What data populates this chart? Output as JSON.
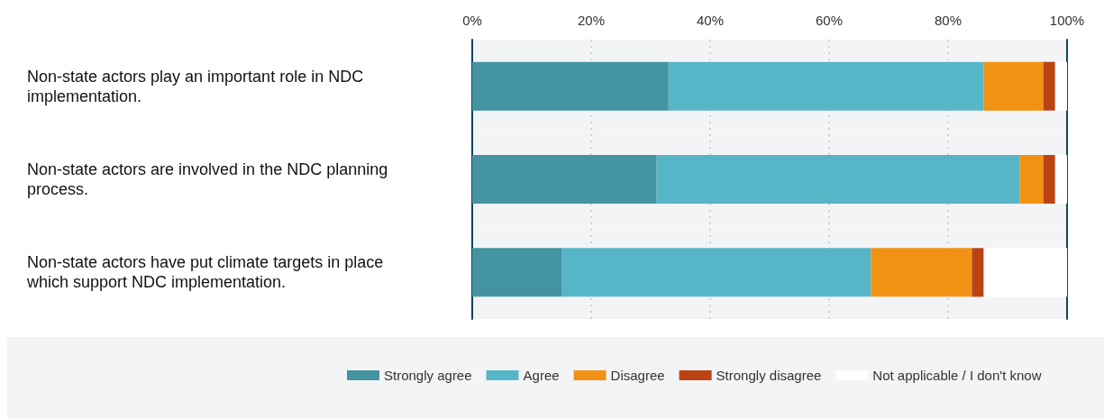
{
  "chart_data": {
    "type": "bar",
    "orientation": "horizontal",
    "stacked": true,
    "categories": [
      "Non-state actors play an important role in NDC implementation.",
      "Non-state actors are involved in the NDC planning process.",
      "Non-state actors have put climate targets in place which support NDC implementation."
    ],
    "series": [
      {
        "name": "Strongly agree",
        "color": "#4394a0",
        "values": [
          33,
          31,
          15
        ]
      },
      {
        "name": "Agree",
        "color": "#57b5c8",
        "values": [
          53,
          61,
          52
        ]
      },
      {
        "name": "Disagree",
        "color": "#f29214",
        "values": [
          10,
          4,
          17
        ]
      },
      {
        "name": "Strongly disagree",
        "color": "#bb4215",
        "values": [
          2,
          2,
          2
        ]
      },
      {
        "name": "Not applicable / I don't know",
        "color": "#ffffff",
        "values": [
          2,
          2,
          14
        ]
      }
    ],
    "xlim": [
      0,
      100
    ],
    "xticks": [
      {
        "value": 0,
        "label": "0%"
      },
      {
        "value": 20,
        "label": "20%"
      },
      {
        "value": 40,
        "label": "40%"
      },
      {
        "value": 60,
        "label": "60%"
      },
      {
        "value": 80,
        "label": "80%"
      },
      {
        "value": 100,
        "label": "100%"
      }
    ],
    "grid": "x",
    "legend": "bottom"
  }
}
